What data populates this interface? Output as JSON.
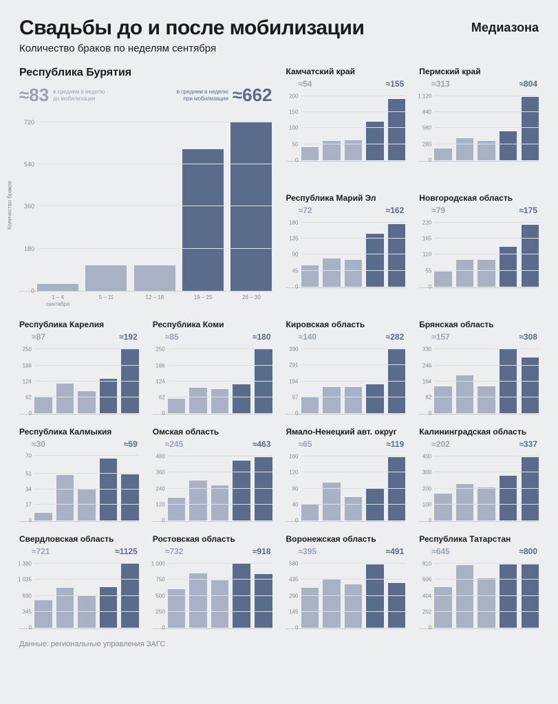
{
  "title": "Свадьбы до и после мобилизации",
  "brand": "Медиазона",
  "subtitle": "Количество браков по неделям сентября",
  "source": "Данные: региональные управления ЗАГС",
  "y_axis_label": "Количество браков",
  "hero_labels": {
    "before": "в среднем в неделю\nдо мобилизации",
    "after": "в среднем в неделю\nпри мобилизации"
  },
  "x_categories": [
    "1 – 4\nсентября",
    "5 – 11",
    "12 – 18",
    "19 – 25",
    "26 – 30"
  ],
  "colors": {
    "bar_light": "#a9b2c5",
    "bar_dark": "#5a6b8c",
    "text_light": "#9aa3b5",
    "text_dark": "#5a6b8c",
    "grid": "#dcdfe5",
    "bg": "#eceef0"
  },
  "panels": [
    {
      "id": "buryatia",
      "hero": true,
      "title": "Республика Бурятия",
      "before": "≈83",
      "after": "≈662",
      "ticks": [
        0,
        180,
        360,
        540,
        720
      ],
      "ymax": 760,
      "values": [
        30,
        110,
        110,
        605,
        720
      ],
      "bar_types": [
        "light",
        "light",
        "light",
        "dark",
        "dark"
      ]
    },
    {
      "id": "kamchatka",
      "title": "Камчатский край",
      "before": "≈54",
      "after": "≈155",
      "ticks": [
        0,
        50,
        100,
        150,
        200
      ],
      "ymax": 210,
      "values": [
        40,
        60,
        62,
        120,
        190
      ],
      "bar_types": [
        "light",
        "light",
        "light",
        "dark",
        "dark"
      ]
    },
    {
      "id": "perm",
      "title": "Пермский край",
      "before": "≈313",
      "after": "≈804",
      "ticks": [
        0,
        280,
        560,
        840,
        1120
      ],
      "ymax": 1176,
      "tick_labels": [
        "0",
        "280",
        "560",
        "840",
        "1 120"
      ],
      "values": [
        210,
        390,
        340,
        510,
        1100
      ],
      "bar_types": [
        "light",
        "light",
        "light",
        "dark",
        "dark"
      ]
    },
    {
      "id": "mariel",
      "title": "Республика Марий Эл",
      "before": "≈72",
      "after": "≈162",
      "ticks": [
        0,
        45,
        90,
        135,
        180
      ],
      "ymax": 189,
      "values": [
        60,
        80,
        75,
        148,
        175
      ],
      "bar_types": [
        "light",
        "light",
        "light",
        "dark",
        "dark"
      ]
    },
    {
      "id": "novgorod",
      "title": "Новгородская область",
      "before": "≈79",
      "after": "≈175",
      "ticks": [
        0,
        55,
        110,
        165,
        220
      ],
      "ymax": 231,
      "values": [
        52,
        92,
        92,
        138,
        212
      ],
      "bar_types": [
        "light",
        "light",
        "light",
        "dark",
        "dark"
      ]
    },
    {
      "id": "karelia",
      "title": "Республика Карелия",
      "before": "≈87",
      "after": "≈192",
      "ticks": [
        0,
        62,
        124,
        186,
        250
      ],
      "ymax": 262,
      "values": [
        62,
        115,
        85,
        135,
        250
      ],
      "bar_types": [
        "light",
        "light",
        "light",
        "dark",
        "dark"
      ]
    },
    {
      "id": "komi",
      "title": "Республика Коми",
      "before": "≈85",
      "after": "≈180",
      "ticks": [
        0,
        62,
        124,
        186,
        250
      ],
      "ymax": 262,
      "values": [
        58,
        100,
        95,
        112,
        248
      ],
      "bar_types": [
        "light",
        "light",
        "light",
        "dark",
        "dark"
      ]
    },
    {
      "id": "kirov",
      "title": "Кировская область",
      "before": "≈140",
      "after": "≈282",
      "ticks": [
        0,
        97,
        194,
        291,
        390
      ],
      "ymax": 409,
      "values": [
        100,
        160,
        160,
        175,
        390
      ],
      "bar_types": [
        "light",
        "light",
        "light",
        "dark",
        "dark"
      ]
    },
    {
      "id": "bryansk",
      "title": "Брянская область",
      "before": "≈157",
      "after": "≈308",
      "ticks": [
        0,
        82,
        164,
        246,
        330
      ],
      "ymax": 346,
      "values": [
        138,
        195,
        138,
        328,
        288
      ],
      "bar_types": [
        "light",
        "light",
        "light",
        "dark",
        "dark"
      ]
    },
    {
      "id": "kalmykia",
      "title": "Республика Калмыкия",
      "before": "≈30",
      "after": "≈59",
      "ticks": [
        0,
        17,
        34,
        51,
        70
      ],
      "ymax": 73,
      "values": [
        8,
        49,
        34,
        67,
        50
      ],
      "bar_types": [
        "light",
        "light",
        "light",
        "dark",
        "dark"
      ]
    },
    {
      "id": "omsk",
      "title": "Омская область",
      "before": "≈245",
      "after": "≈463",
      "ticks": [
        0,
        120,
        240,
        360,
        480
      ],
      "ymax": 504,
      "values": [
        170,
        300,
        265,
        450,
        475
      ],
      "bar_types": [
        "light",
        "light",
        "light",
        "dark",
        "dark"
      ]
    },
    {
      "id": "yanao",
      "title": "Ямало-Ненецкий авт. округ",
      "before": "≈65",
      "after": "≈119",
      "ticks": [
        0,
        40,
        80,
        120,
        160
      ],
      "ymax": 168,
      "values": [
        42,
        95,
        58,
        80,
        158
      ],
      "bar_types": [
        "light",
        "light",
        "light",
        "dark",
        "dark"
      ]
    },
    {
      "id": "kaliningrad",
      "title": "Калининградская область",
      "before": "≈202",
      "after": "≈337",
      "ticks": [
        0,
        100,
        200,
        300,
        400
      ],
      "ymax": 420,
      "values": [
        170,
        230,
        205,
        280,
        395
      ],
      "bar_types": [
        "light",
        "light",
        "light",
        "dark",
        "dark"
      ]
    },
    {
      "id": "sverdlovsk",
      "title": "Свердловская область",
      "before": "≈721",
      "after": "≈1125",
      "ticks": [
        0,
        345,
        690,
        1035,
        1380
      ],
      "ymax": 1449,
      "tick_labels": [
        "0",
        "345",
        "690",
        "1 035",
        "1 380"
      ],
      "values": [
        600,
        860,
        705,
        870,
        1380
      ],
      "bar_types": [
        "light",
        "light",
        "light",
        "dark",
        "dark"
      ]
    },
    {
      "id": "rostov",
      "title": "Ростовская область",
      "before": "≈732",
      "after": "≈918",
      "ticks": [
        0,
        250,
        500,
        750,
        1000
      ],
      "ymax": 1050,
      "tick_labels": [
        "0",
        "250",
        "500",
        "750",
        "1 000"
      ],
      "values": [
        600,
        850,
        745,
        1000,
        835
      ],
      "bar_types": [
        "light",
        "light",
        "light",
        "dark",
        "dark"
      ]
    },
    {
      "id": "voronezh",
      "title": "Воронежская область",
      "before": "≈395",
      "after": "≈491",
      "ticks": [
        0,
        145,
        290,
        435,
        580
      ],
      "ymax": 609,
      "values": [
        360,
        435,
        390,
        575,
        408
      ],
      "bar_types": [
        "light",
        "light",
        "light",
        "dark",
        "dark"
      ]
    },
    {
      "id": "tatarstan",
      "title": "Республика Татарстан",
      "before": "≈645",
      "after": "≈800",
      "ticks": [
        0,
        202,
        404,
        606,
        810
      ],
      "ymax": 850,
      "values": [
        515,
        790,
        630,
        800,
        800
      ],
      "bar_types": [
        "light",
        "light",
        "light",
        "dark",
        "dark"
      ]
    }
  ]
}
